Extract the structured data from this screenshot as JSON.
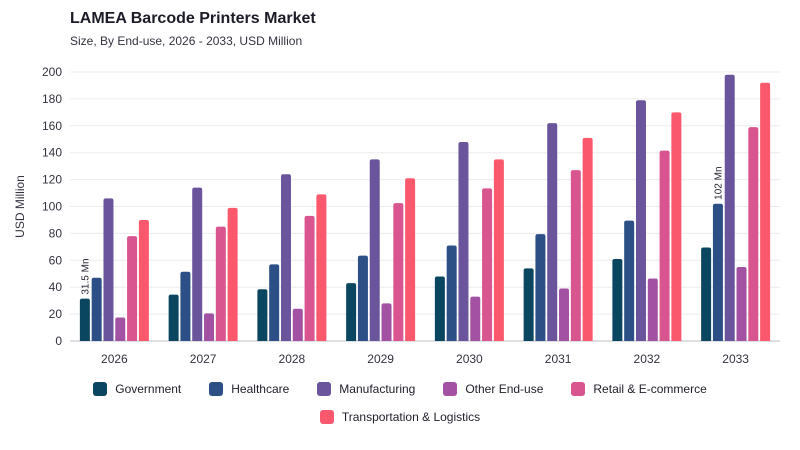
{
  "header": {
    "title": "LAMEA Barcode Printers Market",
    "subtitle": "Size, By End-use, 2026 - 2033, USD Million"
  },
  "chart_data": {
    "type": "bar",
    "title": "LAMEA Barcode Printers Market",
    "subtitle": "Size, By End-use, 2026 - 2033, USD Million",
    "xlabel": "",
    "ylabel": "USD Million",
    "ylim": [
      0,
      200
    ],
    "yticks": [
      0,
      20,
      40,
      60,
      80,
      100,
      120,
      140,
      160,
      180,
      200
    ],
    "grid": true,
    "legend_placement": "bottom",
    "categories": [
      "2026",
      "2027",
      "2028",
      "2029",
      "2030",
      "2031",
      "2032",
      "2033"
    ],
    "series": [
      {
        "name": "Government",
        "color": "#0b4660",
        "values": [
          31.5,
          34.5,
          38.5,
          43,
          48,
          54,
          61,
          69.5
        ]
      },
      {
        "name": "Healthcare",
        "color": "#2c4f86",
        "values": [
          47,
          51.5,
          57,
          63.5,
          71,
          79.5,
          89.5,
          102
        ]
      },
      {
        "name": "Manufacturing",
        "color": "#6a559c",
        "values": [
          106,
          114,
          124,
          135,
          148,
          162,
          179,
          198
        ]
      },
      {
        "name": "Other End-use",
        "color": "#a251a3",
        "values": [
          17.5,
          20.5,
          24,
          28,
          33,
          39,
          46.5,
          55
        ]
      },
      {
        "name": "Retail & E-commerce",
        "color": "#d9558f",
        "values": [
          78,
          85,
          93,
          102.5,
          113.5,
          127,
          141.5,
          159
        ]
      },
      {
        "name": "Transportation & Logistics",
        "color": "#f9586d",
        "values": [
          90,
          99,
          109,
          121,
          135,
          151,
          170,
          192
        ]
      }
    ],
    "annotations": [
      {
        "text": "31.5 Mn",
        "category": "2026",
        "series": "Government"
      },
      {
        "text": "102 Mn",
        "category": "2033",
        "series": "Healthcare"
      }
    ]
  }
}
